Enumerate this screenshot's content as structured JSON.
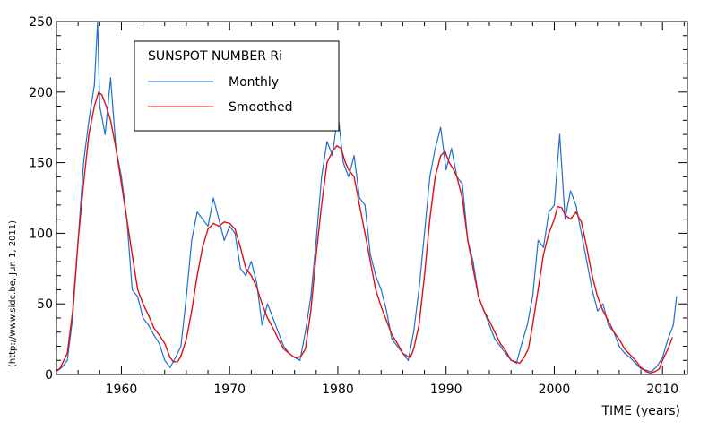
{
  "chart_data": {
    "type": "line",
    "title": "SUNSPOT NUMBER Ri",
    "xlabel": "TIME (years)",
    "side_note": "(http://www.sidc.be, Jun  1, 2011)",
    "xlim": [
      1954,
      2012.3
    ],
    "ylim": [
      0,
      250
    ],
    "x_ticks": [
      1960,
      1970,
      1980,
      1990,
      2000,
      2010
    ],
    "y_ticks": [
      0,
      50,
      100,
      150,
      200,
      250
    ],
    "legend_position": "top-left",
    "grid": false,
    "series": [
      {
        "name": "Monthly",
        "color": "#1f6fd0",
        "x": [
          1954.0,
          1954.5,
          1955.0,
          1955.5,
          1956.0,
          1956.5,
          1957.0,
          1957.5,
          1957.8,
          1958.0,
          1958.5,
          1959.0,
          1959.5,
          1960.0,
          1960.5,
          1961.0,
          1961.5,
          1962.0,
          1962.5,
          1963.0,
          1963.5,
          1964.0,
          1964.5,
          1965.0,
          1965.5,
          1966.0,
          1966.5,
          1967.0,
          1967.5,
          1968.0,
          1968.5,
          1969.0,
          1969.5,
          1970.0,
          1970.5,
          1971.0,
          1971.5,
          1972.0,
          1972.5,
          1973.0,
          1973.5,
          1974.0,
          1974.5,
          1975.0,
          1975.5,
          1976.0,
          1976.5,
          1977.0,
          1977.5,
          1978.0,
          1978.5,
          1979.0,
          1979.5,
          1980.0,
          1980.5,
          1981.0,
          1981.5,
          1982.0,
          1982.5,
          1983.0,
          1983.5,
          1984.0,
          1984.5,
          1985.0,
          1985.5,
          1986.0,
          1986.5,
          1987.0,
          1987.5,
          1988.0,
          1988.5,
          1989.0,
          1989.5,
          1990.0,
          1990.5,
          1991.0,
          1991.5,
          1992.0,
          1992.5,
          1993.0,
          1993.5,
          1994.0,
          1994.5,
          1995.0,
          1995.5,
          1996.0,
          1996.5,
          1997.0,
          1997.5,
          1998.0,
          1998.5,
          1999.0,
          1999.5,
          2000.0,
          2000.5,
          2001.0,
          2001.5,
          2002.0,
          2002.5,
          2003.0,
          2003.5,
          2004.0,
          2004.5,
          2005.0,
          2005.5,
          2006.0,
          2006.5,
          2007.0,
          2007.5,
          2008.0,
          2008.5,
          2009.0,
          2009.5,
          2010.0,
          2010.5,
          2011.0,
          2011.3
        ],
        "values": [
          2,
          5,
          10,
          40,
          95,
          150,
          180,
          205,
          250,
          190,
          170,
          210,
          160,
          140,
          110,
          60,
          55,
          40,
          35,
          28,
          22,
          10,
          5,
          12,
          20,
          55,
          95,
          115,
          110,
          105,
          125,
          110,
          95,
          105,
          100,
          75,
          70,
          80,
          65,
          35,
          50,
          40,
          30,
          20,
          15,
          12,
          10,
          30,
          55,
          95,
          140,
          165,
          155,
          185,
          150,
          140,
          155,
          125,
          120,
          85,
          70,
          60,
          45,
          25,
          20,
          15,
          10,
          30,
          60,
          100,
          140,
          160,
          175,
          145,
          160,
          140,
          135,
          95,
          80,
          55,
          45,
          35,
          25,
          20,
          15,
          10,
          8,
          22,
          35,
          55,
          95,
          90,
          115,
          120,
          170,
          110,
          130,
          120,
          100,
          80,
          60,
          45,
          50,
          35,
          30,
          20,
          15,
          12,
          8,
          4,
          3,
          2,
          6,
          12,
          25,
          35,
          55
        ]
      },
      {
        "name": "Smoothed",
        "color": "#e01010",
        "x": [
          1954.0,
          1954.3,
          1955.0,
          1955.5,
          1956.0,
          1956.5,
          1957.0,
          1957.5,
          1957.9,
          1958.2,
          1958.6,
          1959.0,
          1959.5,
          1960.0,
          1960.5,
          1961.0,
          1961.5,
          1962.0,
          1962.5,
          1963.0,
          1963.5,
          1964.0,
          1964.5,
          1964.8,
          1965.2,
          1965.5,
          1966.0,
          1966.5,
          1967.0,
          1967.5,
          1968.0,
          1968.5,
          1969.0,
          1969.5,
          1970.0,
          1970.5,
          1971.0,
          1971.5,
          1972.0,
          1972.5,
          1973.0,
          1973.5,
          1974.0,
          1974.5,
          1975.0,
          1975.5,
          1976.0,
          1976.3,
          1976.6,
          1977.0,
          1977.5,
          1978.0,
          1978.5,
          1979.0,
          1979.5,
          1979.9,
          1980.3,
          1980.7,
          1981.0,
          1981.5,
          1982.0,
          1982.5,
          1983.0,
          1983.5,
          1984.0,
          1984.5,
          1985.0,
          1985.5,
          1986.0,
          1986.4,
          1986.7,
          1987.0,
          1987.5,
          1988.0,
          1988.5,
          1989.0,
          1989.5,
          1989.9,
          1990.3,
          1990.7,
          1991.0,
          1991.5,
          1992.0,
          1992.5,
          1993.0,
          1993.5,
          1994.0,
          1994.5,
          1995.0,
          1995.5,
          1996.0,
          1996.4,
          1996.8,
          1997.2,
          1997.6,
          1998.0,
          1998.5,
          1999.0,
          1999.5,
          2000.0,
          2000.3,
          2000.7,
          2001.0,
          2001.5,
          2002.0,
          2002.5,
          2003.0,
          2003.5,
          2004.0,
          2004.5,
          2005.0,
          2005.5,
          2006.0,
          2006.5,
          2007.0,
          2007.5,
          2008.0,
          2008.5,
          2008.9,
          2009.3,
          2009.7,
          2010.0,
          2010.5,
          2010.9
        ],
        "values": [
          3,
          4,
          15,
          45,
          95,
          135,
          170,
          190,
          200,
          198,
          190,
          180,
          160,
          135,
          110,
          85,
          60,
          50,
          42,
          33,
          28,
          22,
          12,
          9,
          9,
          13,
          25,
          45,
          70,
          90,
          103,
          107,
          105,
          108,
          107,
          103,
          90,
          75,
          70,
          62,
          50,
          40,
          33,
          25,
          18,
          15,
          12,
          12,
          13,
          18,
          45,
          85,
          120,
          150,
          158,
          162,
          160,
          150,
          145,
          140,
          120,
          100,
          80,
          60,
          48,
          38,
          28,
          22,
          15,
          13,
          12,
          18,
          35,
          70,
          110,
          140,
          155,
          158,
          150,
          145,
          140,
          125,
          95,
          75,
          55,
          45,
          38,
          30,
          22,
          17,
          10,
          9,
          8,
          12,
          18,
          35,
          60,
          85,
          100,
          110,
          119,
          118,
          113,
          110,
          115,
          108,
          90,
          70,
          55,
          45,
          38,
          30,
          25,
          18,
          14,
          10,
          5,
          2,
          1,
          2,
          4,
          10,
          18,
          26
        ]
      }
    ]
  }
}
